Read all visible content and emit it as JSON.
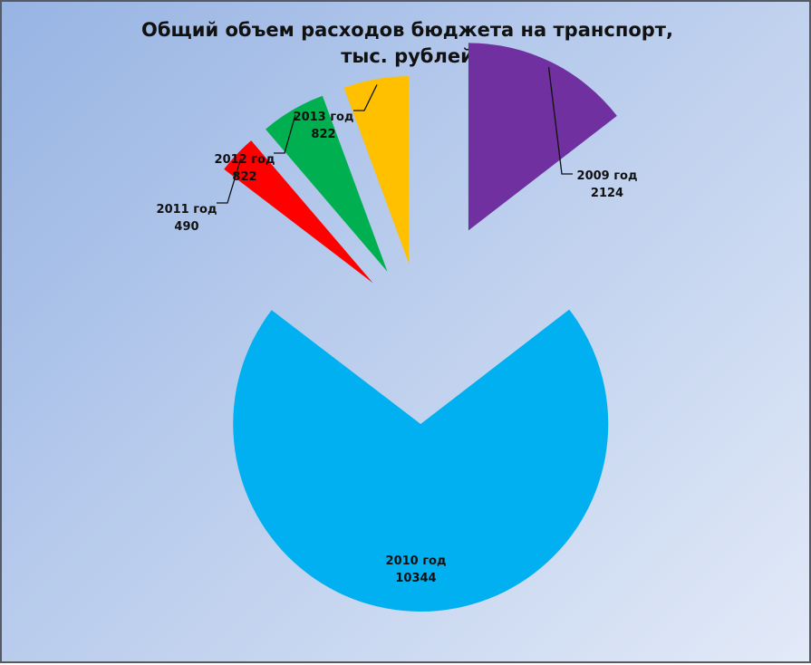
{
  "chart_data": {
    "type": "pie",
    "title": "Общий объем расходов бюджета на транспорт,\nтыс. рублей",
    "exploded": true,
    "slices": [
      {
        "label": "2009 год",
        "value": 2124,
        "color": "#7030a0"
      },
      {
        "label": "2010 год",
        "value": 10344,
        "color": "#00b0f0"
      },
      {
        "label": "2011 год",
        "value": 490,
        "color": "#ff0000"
      },
      {
        "label": "2012 год",
        "value": 822,
        "color": "#00b050"
      },
      {
        "label": "2013 год",
        "value": 822,
        "color": "#ffc000"
      }
    ]
  }
}
